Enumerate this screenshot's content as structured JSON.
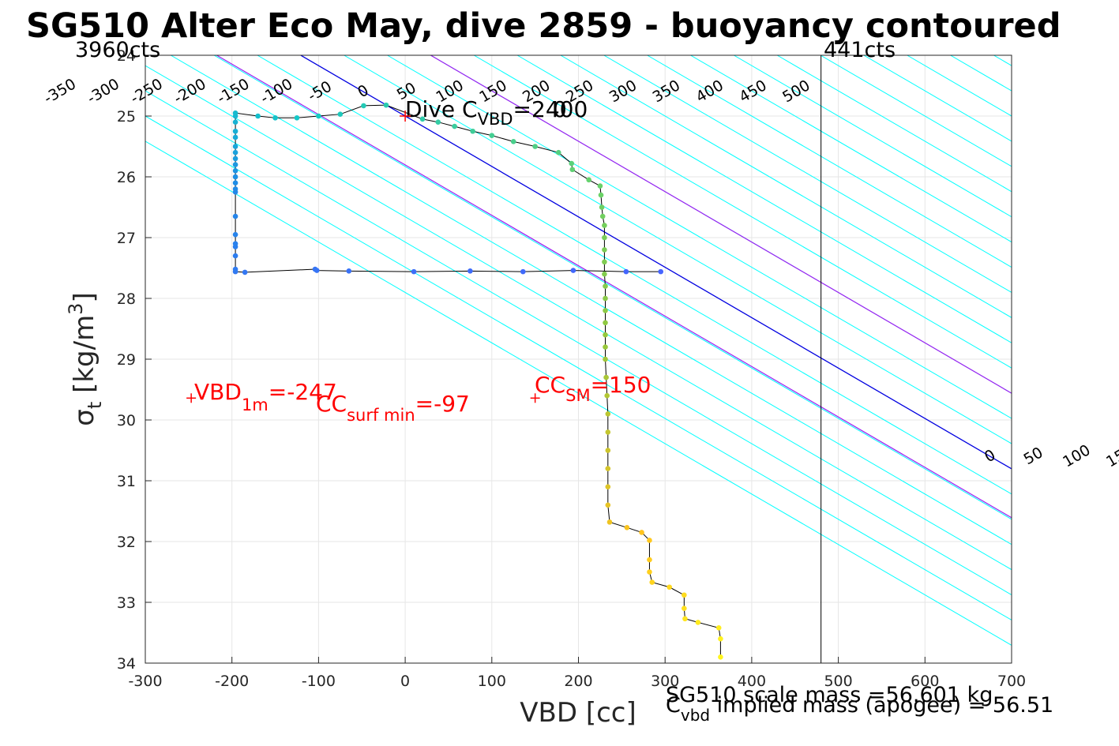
{
  "chart_data": {
    "type": "scatter",
    "title": "SG510 Alter Eco May, dive 2859 - buoyancy contoured",
    "xlabel": "VBD [cc]",
    "ylabel": "σ_t [kg/m³]",
    "ylabel_parts": {
      "sym": "σ",
      "sub": "t",
      "unit_pre": " [kg/m",
      "sup": "3",
      "unit_post": "]"
    },
    "xlim": [
      -300,
      700
    ],
    "ylim": [
      24,
      34
    ],
    "y_reversed": true,
    "grid": true,
    "xticks": [
      -300,
      -200,
      -100,
      0,
      100,
      200,
      300,
      400,
      500,
      600,
      700
    ],
    "yticks": [
      24,
      25,
      26,
      27,
      28,
      29,
      30,
      31,
      32,
      33,
      34
    ],
    "x_tick_labels": [
      "-300",
      "-200",
      "-100",
      "0",
      "100",
      "200",
      "300",
      "400",
      "500",
      "600",
      "700"
    ],
    "y_tick_labels": [
      "24",
      "25",
      "26",
      "27",
      "28",
      "29",
      "30",
      "31",
      "32",
      "33",
      "34"
    ],
    "vbd_count_labels": {
      "left": "3960cts",
      "right": "441cts"
    },
    "vbd_max_line_x": 480,
    "contour_lines": {
      "slope_cc_per_sigma": 120.6,
      "cyan_levels": [
        -350,
        -300,
        -250,
        -200,
        -150,
        -100,
        -50,
        50,
        100,
        150,
        200,
        250,
        300,
        350,
        400,
        450,
        500,
        550,
        600,
        650,
        700,
        750,
        800,
        850
      ],
      "zero_level": 0,
      "surface_levels": [
        -97,
        150
      ],
      "colors": {
        "cyan": "#00ffff",
        "zero": "#0000e0",
        "surface": "#a020f0"
      },
      "upper_labels": [
        {
          "text": "-350",
          "level": -350
        },
        {
          "text": "-300",
          "level": -300
        },
        {
          "text": "-250",
          "level": -250
        },
        {
          "text": "-200",
          "level": -200
        },
        {
          "text": "-150",
          "level": -150
        },
        {
          "text": "-100",
          "level": -100
        },
        {
          "text": "-50",
          "level": -50
        },
        {
          "text": "0",
          "level": 0
        },
        {
          "text": "50",
          "level": 50
        },
        {
          "text": "100",
          "level": 100
        },
        {
          "text": "150",
          "level": 150
        },
        {
          "text": "200",
          "level": 200
        },
        {
          "text": "250",
          "level": 250
        },
        {
          "text": "300",
          "level": 300
        },
        {
          "text": "350",
          "level": 350
        },
        {
          "text": "400",
          "level": 400
        },
        {
          "text": "450",
          "level": 450
        },
        {
          "text": "500",
          "level": 500
        }
      ],
      "lower_labels": [
        {
          "text": "0",
          "level": 0
        },
        {
          "text": "50",
          "level": 50
        },
        {
          "text": "100",
          "level": 100
        },
        {
          "text": "150",
          "level": 150
        },
        {
          "text": "200",
          "level": 200
        },
        {
          "text": "250",
          "level": 250
        },
        {
          "text": "300",
          "level": 300
        },
        {
          "text": "350",
          "level": 350
        },
        {
          "text": "400",
          "level": 400
        },
        {
          "text": "450",
          "level": 450
        },
        {
          "text": "500",
          "level": 500
        }
      ]
    },
    "series": [
      {
        "points": [
          [
            295,
            27.56
          ],
          [
            255,
            27.56
          ],
          [
            194,
            27.54
          ],
          [
            136,
            27.56
          ],
          [
            75,
            27.55
          ],
          [
            10,
            27.56
          ],
          [
            -65,
            27.55
          ],
          [
            -102,
            27.54
          ],
          [
            -104,
            27.52
          ],
          [
            -185,
            27.57
          ],
          [
            -196,
            27.56
          ],
          [
            -196,
            27.52
          ],
          [
            -196,
            27.3
          ],
          [
            -196,
            27.15
          ],
          [
            -196,
            27.1
          ],
          [
            -196,
            26.95
          ],
          [
            -196,
            26.65
          ],
          [
            -196,
            26.25
          ],
          [
            -196,
            26.2
          ],
          [
            -196,
            26.1
          ],
          [
            -196,
            26.0
          ],
          [
            -196,
            25.9
          ],
          [
            -196,
            25.8
          ],
          [
            -196,
            25.7
          ],
          [
            -196,
            25.6
          ],
          [
            -196,
            25.5
          ],
          [
            -196,
            25.35
          ],
          [
            -196,
            25.25
          ],
          [
            -196,
            25.1
          ],
          [
            -196,
            25.0
          ],
          [
            -196,
            24.95
          ],
          [
            -170,
            25.0
          ],
          [
            -150,
            25.03
          ],
          [
            -125,
            25.03
          ],
          [
            -100,
            25.0
          ],
          [
            -75,
            24.97
          ],
          [
            -48,
            24.83
          ],
          [
            -22,
            24.82
          ],
          [
            20,
            25.05
          ],
          [
            38,
            25.1
          ],
          [
            57,
            25.17
          ],
          [
            78,
            25.25
          ],
          [
            100,
            25.32
          ],
          [
            125,
            25.42
          ],
          [
            150,
            25.5
          ],
          [
            177,
            25.6
          ],
          [
            192,
            25.78
          ],
          [
            193,
            25.88
          ],
          [
            212,
            26.05
          ],
          [
            225,
            26.15
          ],
          [
            226,
            26.3
          ],
          [
            227,
            26.5
          ],
          [
            228,
            26.65
          ],
          [
            230,
            26.8
          ],
          [
            230,
            27.0
          ],
          [
            230,
            27.2
          ],
          [
            230,
            27.4
          ],
          [
            230,
            27.6
          ],
          [
            231,
            27.8
          ],
          [
            231,
            28.0
          ],
          [
            231,
            28.2
          ],
          [
            231,
            28.4
          ],
          [
            231,
            28.6
          ],
          [
            231,
            28.8
          ],
          [
            231,
            29.0
          ],
          [
            232,
            29.3
          ],
          [
            233,
            29.6
          ],
          [
            234,
            29.9
          ],
          [
            234,
            30.2
          ],
          [
            234,
            30.5
          ],
          [
            234,
            30.8
          ],
          [
            234,
            31.1
          ],
          [
            234,
            31.4
          ],
          [
            236,
            31.68
          ],
          [
            256,
            31.77
          ],
          [
            273,
            31.85
          ],
          [
            282,
            31.98
          ],
          [
            282,
            32.3
          ],
          [
            282,
            32.5
          ],
          [
            285,
            32.67
          ],
          [
            305,
            32.75
          ],
          [
            322,
            32.88
          ],
          [
            322,
            33.1
          ],
          [
            323,
            33.27
          ],
          [
            338,
            33.33
          ],
          [
            362,
            33.42
          ],
          [
            364,
            33.6
          ],
          [
            364,
            33.9
          ]
        ]
      }
    ],
    "markers": {
      "dive_c_vbd": {
        "x": 0,
        "y": 25,
        "label_main": "Dive C",
        "label_sub": "VBD",
        "label_val": "=2400",
        "overlap_text": "0"
      },
      "vbd_1m": {
        "x": -247,
        "y": 29.64,
        "label_main": "VBD",
        "label_sub": "1m",
        "label_val": "=-247"
      },
      "cc_surf_min": {
        "label_main": "CC",
        "label_sub": "surf min",
        "label_val": "=-97"
      },
      "cc_sm": {
        "x": 150,
        "y": 29.64,
        "label_main": "CC",
        "label_sub": "SM",
        "label_val": "=150"
      }
    },
    "annotations": {
      "scale_mass": "SG510 scale mass =56.601 kg",
      "implied_mass": {
        "main": "C",
        "sub": "vbd",
        "rest": " implied mass (apogee) = 56.51"
      }
    },
    "colors": {
      "red": "#ff0000",
      "line": "#000000",
      "grid": "#e6e6e6",
      "axis": "#262626"
    }
  }
}
